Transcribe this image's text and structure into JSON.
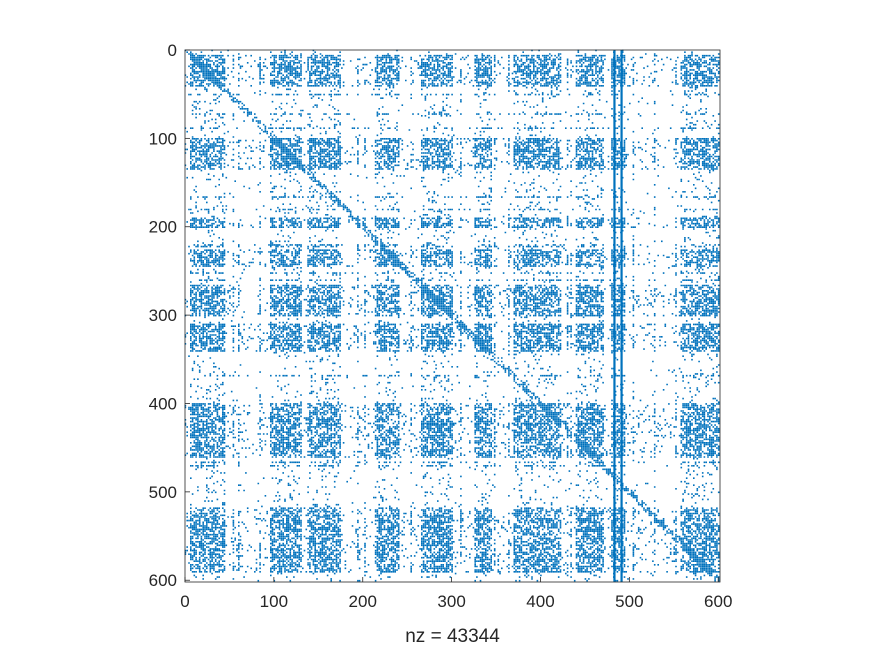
{
  "chart_data": {
    "type": "spy",
    "matrix_size": [
      602,
      602
    ],
    "nonzero_count": 43344,
    "xlabel": "nz = 43344",
    "x_ticks": [
      0,
      100,
      200,
      300,
      400,
      500,
      600
    ],
    "y_ticks": [
      0,
      100,
      200,
      300,
      400,
      500,
      600
    ],
    "x_tick_labels": [
      "0",
      "100",
      "200",
      "300",
      "400",
      "500",
      "600"
    ],
    "y_tick_labels": [
      "0",
      "100",
      "200",
      "300",
      "400",
      "500",
      "600"
    ],
    "xlim": [
      0,
      602
    ],
    "ylim": [
      0,
      602
    ],
    "y_reversed": true,
    "grid": false,
    "marker_color": "#0072BD",
    "dense_col_bands": [
      [
        5,
        45
      ],
      [
        95,
        130
      ],
      [
        140,
        175
      ],
      [
        215,
        240
      ],
      [
        265,
        300
      ],
      [
        325,
        345
      ],
      [
        370,
        420
      ],
      [
        440,
        470
      ],
      [
        480,
        495
      ],
      [
        560,
        600
      ]
    ],
    "dense_row_bands": [
      [
        5,
        40
      ],
      [
        100,
        135
      ],
      [
        190,
        200
      ],
      [
        225,
        245
      ],
      [
        265,
        300
      ],
      [
        310,
        340
      ],
      [
        400,
        460
      ],
      [
        520,
        590
      ]
    ]
  }
}
